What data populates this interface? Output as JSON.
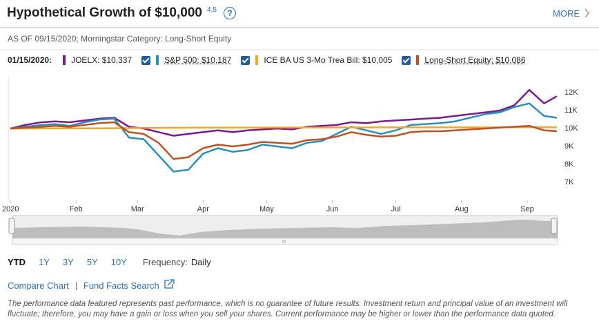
{
  "header": {
    "title": "Hypothetical Growth of $10,000",
    "footnotes": "4,5",
    "more": "MORE"
  },
  "as_of": "AS OF 09/15/2020; Morningstar Category: Long-Short Equity",
  "chart_data": {
    "type": "line",
    "legend_date": "01/15/2020:",
    "x": [
      0,
      7,
      14,
      21,
      28,
      35,
      42,
      49,
      56,
      63,
      70,
      77,
      84,
      91,
      98,
      105,
      112,
      119,
      126,
      133,
      140,
      147,
      154,
      161,
      168,
      175,
      182,
      189,
      196,
      203,
      210,
      217,
      224,
      231,
      238,
      245,
      252,
      258
    ],
    "xlim": [
      -1,
      259
    ],
    "xticks": [
      {
        "value": 0,
        "label": "2020"
      },
      {
        "value": 31,
        "label": "Feb"
      },
      {
        "value": 60,
        "label": "Mar"
      },
      {
        "value": 91,
        "label": "Apr"
      },
      {
        "value": 121,
        "label": "May"
      },
      {
        "value": 152,
        "label": "Jun"
      },
      {
        "value": 182,
        "label": "Jul"
      },
      {
        "value": 213,
        "label": "Aug"
      },
      {
        "value": 244,
        "label": "Sep"
      }
    ],
    "ylim": [
      6000,
      12850
    ],
    "yticks": [
      {
        "value": 7000,
        "label": "7K"
      },
      {
        "value": 8000,
        "label": "8K"
      },
      {
        "value": 9000,
        "label": "9K"
      },
      {
        "value": 10000,
        "label": "10K"
      },
      {
        "value": 11000,
        "label": "11K"
      },
      {
        "value": 12000,
        "label": "12K"
      }
    ],
    "grid": false,
    "series": [
      {
        "name": "JOELX: $10,337",
        "color": "#7b1a8c",
        "values": [
          10000,
          10200,
          10337,
          10400,
          10350,
          10450,
          10550,
          10600,
          10100,
          10000,
          9800,
          9600,
          9700,
          9800,
          9900,
          9800,
          9900,
          9950,
          10000,
          9950,
          10100,
          10150,
          10200,
          10350,
          10300,
          10400,
          10450,
          10500,
          10550,
          10600,
          10700,
          10800,
          10900,
          11000,
          11300,
          12150,
          11400,
          11800
        ]
      },
      {
        "name": "S&P 500: $10,187",
        "color": "#2a8fbd",
        "values": [
          10000,
          10100,
          10187,
          10250,
          10150,
          10350,
          10500,
          10550,
          9500,
          9400,
          8500,
          7600,
          7700,
          8600,
          8900,
          8700,
          8800,
          9100,
          9000,
          8900,
          9200,
          9300,
          9700,
          10100,
          9900,
          9700,
          9900,
          10200,
          10250,
          10300,
          10400,
          10600,
          10800,
          10900,
          11200,
          11400,
          10700,
          10600
        ]
      },
      {
        "name": "ICE BA US 3-Mo Trea Bill: $10,005",
        "color": "#f5a623",
        "values": [
          10000,
          10003,
          10005,
          10008,
          10010,
          10012,
          10015,
          10018,
          10020,
          10030,
          10035,
          10040,
          10045,
          10048,
          10050,
          10050,
          10052,
          10053,
          10055,
          10056,
          10057,
          10058,
          10059,
          10060,
          10061,
          10062,
          10062,
          10063,
          10063,
          10064,
          10064,
          10065,
          10065,
          10065,
          10066,
          10066,
          10067,
          10067
        ]
      },
      {
        "name": "Long-Short Equity: $10,086",
        "color": "#c0501f",
        "values": [
          10000,
          10050,
          10086,
          10150,
          10100,
          10200,
          10300,
          10350,
          9800,
          9700,
          9200,
          8300,
          8400,
          8900,
          9100,
          9000,
          9100,
          9250,
          9200,
          9150,
          9350,
          9400,
          9550,
          9800,
          9650,
          9550,
          9600,
          9800,
          9850,
          9850,
          9900,
          9950,
          10000,
          10050,
          10100,
          10150,
          9900,
          9850
        ]
      }
    ]
  },
  "ranges": [
    "YTD",
    "1Y",
    "3Y",
    "5Y",
    "10Y"
  ],
  "frequency_label": "Frequency:",
  "frequency": "Daily",
  "links": [
    "Compare Chart",
    "Fund Facts Search"
  ],
  "disclaimer": "The performance data featured represents past performance, which is no guarantee of future results. Investment return and principal value of an investment will fluctuate; therefore, you may have a gain or loss when you sell your shares. Current performance may be higher or lower than the performance data quoted."
}
